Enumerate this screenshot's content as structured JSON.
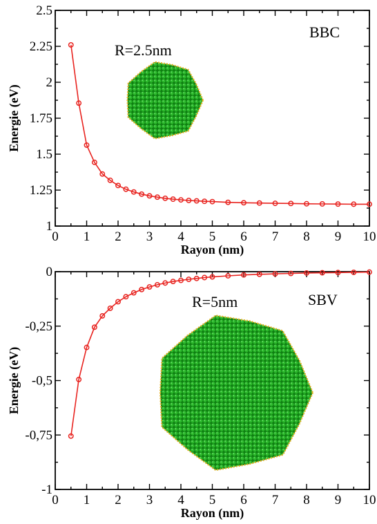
{
  "chart_data": [
    {
      "type": "line",
      "x": [
        0.5,
        0.75,
        1.0,
        1.25,
        1.5,
        1.75,
        2.0,
        2.25,
        2.5,
        2.75,
        3.0,
        3.25,
        3.5,
        3.75,
        4.0,
        4.25,
        4.5,
        4.75,
        5.0,
        5.5,
        6.0,
        6.5,
        7.0,
        7.5,
        8.0,
        8.5,
        9.0,
        9.5,
        10.0
      ],
      "series": [
        {
          "values": [
            2.26,
            1.855,
            1.563,
            1.443,
            1.362,
            1.318,
            1.282,
            1.256,
            1.237,
            1.222,
            1.21,
            1.201,
            1.193,
            1.187,
            1.182,
            1.178,
            1.175,
            1.172,
            1.17,
            1.165,
            1.162,
            1.16,
            1.158,
            1.157,
            1.155,
            1.154,
            1.153,
            1.152,
            1.152
          ],
          "color": "#e8231f"
        }
      ],
      "xlabel": "Rayon (nm)",
      "ylabel": "Energie (eV)",
      "xlim": [
        0,
        10
      ],
      "ylim": [
        1,
        2.5
      ],
      "xticks": [
        "0",
        "1",
        "2",
        "3",
        "4",
        "5",
        "6",
        "7",
        "8",
        "9",
        "10"
      ],
      "yticks": [
        "1",
        "1.25",
        "1.5",
        "1.75",
        "2",
        "2.25",
        "2.5"
      ],
      "ytick_values": [
        1,
        1.25,
        1.5,
        1.75,
        2,
        2.25,
        2.5
      ],
      "annotations": [
        "BBC",
        "R=2.5nm"
      ],
      "inset_color": "#1a9e1a",
      "inset_edge_color": "#e8b020",
      "inset_relative_size": 0.5,
      "grid": false
    },
    {
      "type": "line",
      "x": [
        0.5,
        0.75,
        1.0,
        1.25,
        1.5,
        1.75,
        2.0,
        2.25,
        2.5,
        2.75,
        3.0,
        3.25,
        3.5,
        3.75,
        4.0,
        4.25,
        4.5,
        4.75,
        5.0,
        5.5,
        6.0,
        6.5,
        7.0,
        7.5,
        8.0,
        8.5,
        9.0,
        9.5,
        10.0
      ],
      "series": [
        {
          "values": [
            -0.755,
            -0.495,
            -0.348,
            -0.255,
            -0.203,
            -0.168,
            -0.138,
            -0.115,
            -0.097,
            -0.082,
            -0.07,
            -0.06,
            -0.052,
            -0.045,
            -0.04,
            -0.035,
            -0.031,
            -0.027,
            -0.024,
            -0.019,
            -0.015,
            -0.012,
            -0.01,
            -0.008,
            -0.006,
            -0.005,
            -0.004,
            -0.003,
            -0.002
          ],
          "color": "#e8231f"
        }
      ],
      "xlabel": "Rayon (nm)",
      "ylabel": "Energie (eV)",
      "xlim": [
        0,
        10
      ],
      "ylim": [
        -1,
        0
      ],
      "xticks": [
        "0",
        "1",
        "2",
        "3",
        "4",
        "5",
        "6",
        "7",
        "8",
        "9",
        "10"
      ],
      "yticks": [
        "-1",
        "-0,75",
        "-0,5",
        "-0,25",
        "0"
      ],
      "ytick_values": [
        -1,
        -0.75,
        -0.5,
        -0.25,
        0
      ],
      "annotations": [
        "SBV",
        "R=5nm"
      ],
      "inset_color": "#1a9e1a",
      "inset_edge_color": "#e8b020",
      "inset_relative_size": 1.0,
      "grid": false
    }
  ]
}
